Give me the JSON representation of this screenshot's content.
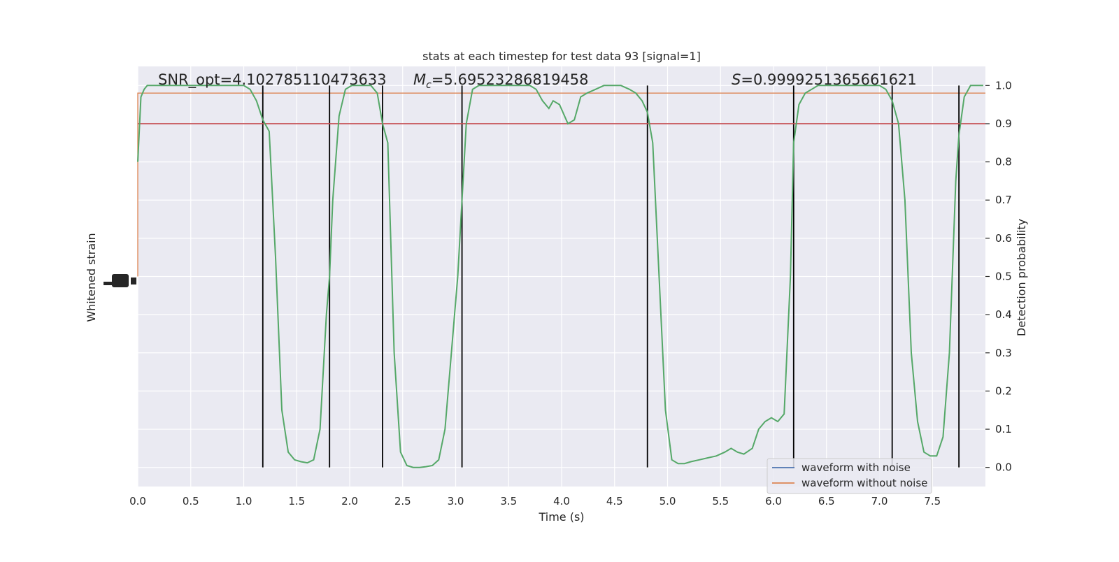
{
  "chart_data": {
    "type": "line",
    "title": "stats at each timestep for test data 93 [signal=1]",
    "xlabel": "Time (s)",
    "ylabel_left": "Whitened strain",
    "ylabel_right": "Detection probability",
    "xlim": [
      0,
      8
    ],
    "ylim_right": [
      -0.05,
      1.05
    ],
    "x_ticks": [
      "0.0",
      "0.5",
      "1.0",
      "1.5",
      "2.0",
      "2.5",
      "3.0",
      "3.5",
      "4.0",
      "4.5",
      "5.0",
      "5.5",
      "6.0",
      "6.5",
      "7.0",
      "7.5"
    ],
    "y_ticks_right": [
      "0.0",
      "0.1",
      "0.2",
      "0.3",
      "0.4",
      "0.5",
      "0.6",
      "0.7",
      "0.8",
      "0.9",
      "1.0"
    ],
    "annotations": {
      "snr": "SNR_opt=4.102785110473633",
      "mc_symbol": "M",
      "mc_sub": "c",
      "mc_value": "=5.69523286819458",
      "s_symbol": "S",
      "s_value": "=0.9999251365661621"
    },
    "threshold": {
      "value": 0.9,
      "color": "#c44e52"
    },
    "vertical_lines_x": [
      1.18,
      1.81,
      2.31,
      3.06,
      4.81,
      6.19,
      7.12,
      7.75
    ],
    "series": [
      {
        "name": "waveform with noise",
        "color": "#4c72b0"
      },
      {
        "name": "waveform without noise",
        "color": "#dd8452"
      }
    ],
    "probability_color": "#55a868",
    "probability": {
      "x": [
        0.0,
        0.03,
        0.06,
        0.09,
        0.12,
        0.2,
        0.3,
        0.4,
        0.5,
        0.6,
        0.7,
        0.8,
        0.9,
        1.0,
        1.06,
        1.12,
        1.18,
        1.24,
        1.3,
        1.36,
        1.42,
        1.48,
        1.54,
        1.6,
        1.66,
        1.72,
        1.78,
        1.81,
        1.84,
        1.9,
        1.96,
        2.02,
        2.08,
        2.14,
        2.2,
        2.26,
        2.31,
        2.36,
        2.42,
        2.48,
        2.54,
        2.6,
        2.66,
        2.72,
        2.78,
        2.84,
        2.9,
        2.96,
        3.02,
        3.06,
        3.1,
        3.16,
        3.22,
        3.3,
        3.4,
        3.5,
        3.6,
        3.7,
        3.76,
        3.82,
        3.88,
        3.92,
        3.98,
        4.06,
        4.12,
        4.18,
        4.24,
        4.32,
        4.4,
        4.48,
        4.56,
        4.64,
        4.7,
        4.76,
        4.81,
        4.86,
        4.92,
        4.98,
        5.04,
        5.1,
        5.16,
        5.22,
        5.3,
        5.38,
        5.46,
        5.54,
        5.6,
        5.66,
        5.72,
        5.8,
        5.86,
        5.92,
        5.98,
        6.04,
        6.1,
        6.16,
        6.19,
        6.24,
        6.3,
        6.36,
        6.42,
        6.5,
        6.6,
        6.7,
        6.8,
        6.9,
        7.0,
        7.06,
        7.12,
        7.18,
        7.24,
        7.3,
        7.36,
        7.42,
        7.48,
        7.54,
        7.6,
        7.66,
        7.72,
        7.75,
        7.8,
        7.86,
        7.92,
        7.98
      ],
      "y": [
        0.8,
        0.97,
        0.99,
        1.0,
        1.0,
        1.0,
        1.0,
        1.0,
        1.0,
        1.0,
        1.0,
        1.0,
        1.0,
        1.0,
        0.99,
        0.96,
        0.91,
        0.88,
        0.55,
        0.15,
        0.04,
        0.02,
        0.015,
        0.012,
        0.02,
        0.1,
        0.4,
        0.5,
        0.7,
        0.92,
        0.99,
        1.0,
        1.0,
        1.0,
        1.0,
        0.98,
        0.9,
        0.85,
        0.3,
        0.04,
        0.005,
        0.0,
        0.0,
        0.002,
        0.005,
        0.02,
        0.1,
        0.3,
        0.5,
        0.7,
        0.9,
        0.99,
        1.0,
        1.0,
        1.0,
        1.0,
        1.0,
        1.0,
        0.99,
        0.96,
        0.94,
        0.96,
        0.95,
        0.9,
        0.91,
        0.97,
        0.98,
        0.99,
        1.0,
        1.0,
        1.0,
        0.99,
        0.98,
        0.96,
        0.93,
        0.85,
        0.5,
        0.15,
        0.02,
        0.01,
        0.01,
        0.015,
        0.02,
        0.025,
        0.03,
        0.04,
        0.05,
        0.04,
        0.035,
        0.05,
        0.1,
        0.12,
        0.13,
        0.12,
        0.14,
        0.5,
        0.85,
        0.95,
        0.98,
        0.99,
        1.0,
        1.0,
        1.0,
        1.0,
        1.0,
        1.0,
        1.0,
        0.99,
        0.96,
        0.9,
        0.7,
        0.3,
        0.12,
        0.04,
        0.03,
        0.03,
        0.08,
        0.3,
        0.75,
        0.87,
        0.97,
        1.0,
        1.0,
        1.0
      ]
    }
  }
}
